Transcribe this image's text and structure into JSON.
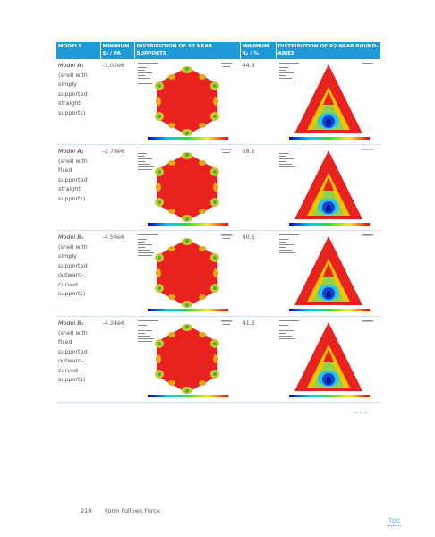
{
  "table": {
    "header": [
      "MODELS",
      "MINIMUM S₃ / PA",
      "DISTRIBUTION OF S3 NEAR SUPPORTS",
      "MINIMUM R₂ / %",
      "DISTRIBUTION OF R2 NEAR BOUND­ARIES"
    ],
    "rows": [
      {
        "model": "Model A₁",
        "description": "(shell with simply supported straight supports)",
        "s3": "-3.02e6",
        "r2": "44.8"
      },
      {
        "model": "Model A₂",
        "description": "(shell with fixed supported straight supports)",
        "s3": "-2.78e6",
        "r2": "58.2"
      },
      {
        "model": "Model B₁",
        "description": "(shell with simply supported outward-curved supports)",
        "s3": "-4.59e6",
        "r2": "40.5"
      },
      {
        "model": "Model B₂",
        "description": "(shell with fixed supported outward-curved supports)",
        "s3": "-4.34e6",
        "r2": "41.3"
      }
    ]
  },
  "continue_mark": "» » »",
  "footer": {
    "page_number": "210",
    "book_title": "Form Follows Force",
    "toc": "TOC"
  }
}
